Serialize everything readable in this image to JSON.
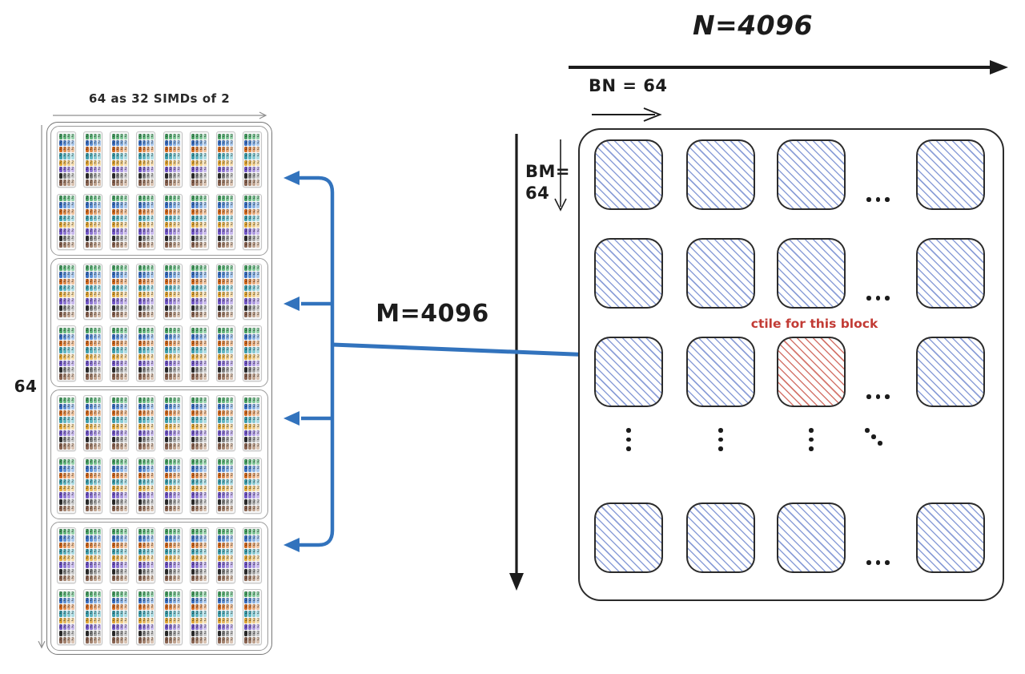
{
  "left_panel": {
    "title": "64 as 32 SIMDs of 2",
    "side_label": "64",
    "groups": 4,
    "tile_rows_per_group": 2,
    "tiles_per_row": 8,
    "tile": {
      "cols": 4,
      "rows": 8,
      "cell_digit": "2",
      "row_palette": [
        [
          "#49a164",
          "#63b77d",
          "#7cc594",
          "#97d2ab"
        ],
        [
          "#3a6fc2",
          "#5e90d4",
          "#86afe2",
          "#aac8ec"
        ],
        [
          "#d2691f",
          "#dd8a4b",
          "#e6a878",
          "#eec29e"
        ],
        [
          "#3d9dab",
          "#5fb5c1",
          "#85c9d2",
          "#abdbe2"
        ],
        [
          "#e0a636",
          "#e7b95e",
          "#eecb86",
          "#f4dcae"
        ],
        [
          "#7055c5",
          "#8d76d2",
          "#ab97df",
          "#c8b9ec"
        ],
        [
          "#2d2d2d",
          "#808080",
          "#a6a6a6",
          "#c9c9c9"
        ],
        [
          "#886250",
          "#a3826e",
          "#bfa28e",
          "#d9c3b2"
        ]
      ]
    }
  },
  "middle": {
    "m_label": "M=4096"
  },
  "right_panel": {
    "n_label": "N=4096",
    "bn_label": "BN = 64",
    "bm_label_line1": "BM=",
    "bm_label_line2": "64",
    "grid": {
      "cols": 4,
      "rows": 4,
      "col_ellipsis_after_index": 2,
      "row_ellipsis_after_index": 2,
      "highlight": {
        "row": 2,
        "col": 2,
        "label": "ctile for this block"
      }
    },
    "ellipsis": {
      "horizontal": "...",
      "vertical": "⋮",
      "diagonal": "⋱"
    }
  },
  "colors": {
    "arrow-blue": "#3273bd",
    "hatch-blue": "#8c9fd8",
    "hatch-red": "#d4766d",
    "label-red": "#c23b35",
    "arrow-black": "#1c1c1c",
    "measure-gray": "#8f8f8f"
  }
}
